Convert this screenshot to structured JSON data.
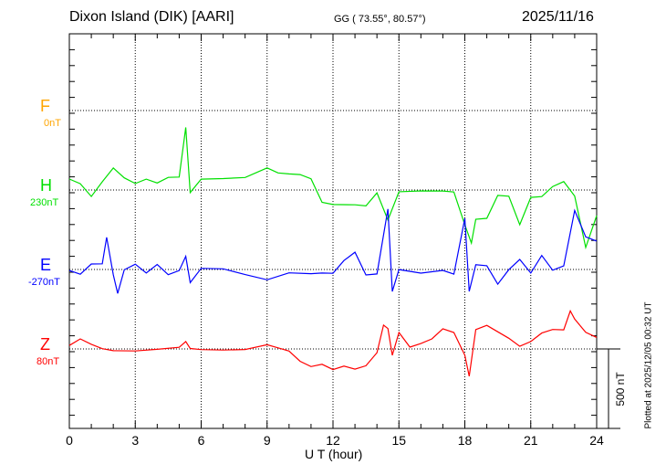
{
  "header": {
    "station": "Dixon Island (DIK)  [AARI]",
    "coords": "GG ( 73.55°,  80.57°)",
    "date": "2025/11/16"
  },
  "footer": {
    "plotted": "Plotted at 2025/12/05 00:32 UT",
    "scale": "500 nT"
  },
  "colors": {
    "F": "#ffa500",
    "H": "#00e000",
    "E": "#0000ff",
    "Z": "#ff0000"
  },
  "chart_data": {
    "type": "line",
    "title": "Dixon Island (DIK)  [AARI]",
    "xlabel": "U T (hour)",
    "xlim": [
      0,
      24
    ],
    "xticks": [
      "0",
      "3",
      "6",
      "9",
      "12",
      "15",
      "18",
      "21",
      "24"
    ],
    "scale_bar_nT": 500,
    "grid": true,
    "series": [
      {
        "name": "F",
        "label": "F",
        "baseline_label": "0nT",
        "baseline": 0,
        "x": [],
        "values": []
      },
      {
        "name": "H",
        "label": "H",
        "baseline_label": "230nT",
        "baseline": 230,
        "x": [
          0,
          0.5,
          1,
          1.5,
          2,
          2.5,
          3,
          3.5,
          4,
          4.5,
          5,
          5.3,
          5.5,
          6,
          7,
          8,
          9,
          9.5,
          10,
          10.5,
          11,
          11.5,
          12,
          13,
          13.5,
          14,
          14.5,
          15,
          16,
          17,
          17.5,
          18,
          18.3,
          18.5,
          19,
          19.5,
          20,
          20.5,
          21,
          21.5,
          22,
          22.5,
          23,
          23.5,
          24
        ],
        "values": [
          305,
          276,
          190,
          276,
          362,
          305,
          276,
          305,
          276,
          305,
          305,
          621,
          218,
          305,
          305,
          305,
          362,
          334,
          334,
          334,
          305,
          150,
          132,
          132,
          132,
          218,
          46,
          218,
          218,
          218,
          218,
          17,
          -98,
          46,
          46,
          190,
          190,
          17,
          190,
          190,
          247,
          276,
          190,
          -127,
          75
        ]
      },
      {
        "name": "E",
        "label": "E",
        "baseline_label": "-270nT",
        "baseline": -270,
        "x": [
          0,
          0.5,
          1,
          1.5,
          1.7,
          2,
          2.2,
          2.5,
          3,
          3.5,
          4,
          4.5,
          5,
          5.3,
          5.5,
          6,
          7,
          8,
          9,
          10,
          11,
          11.5,
          12,
          12.5,
          13,
          13.5,
          14,
          14.5,
          14.7,
          15,
          16,
          17,
          17.5,
          18,
          18.2,
          18.5,
          19,
          19.5,
          20,
          20.5,
          21,
          21.5,
          22,
          22.5,
          23,
          23.5,
          24
        ],
        "values": [
          -270,
          -299,
          -241,
          -241,
          -69,
          -299,
          -414,
          -270,
          -241,
          -299,
          -241,
          -299,
          -270,
          -184,
          -356,
          -270,
          -270,
          -299,
          -328,
          -287,
          -299,
          -299,
          -299,
          -212,
          -155,
          -299,
          -299,
          104,
          -414,
          -270,
          -287,
          -270,
          -299,
          46,
          -414,
          -241,
          -241,
          -356,
          -270,
          -212,
          -299,
          -184,
          -270,
          -241,
          104,
          -69,
          -98
        ]
      },
      {
        "name": "Z",
        "label": "Z",
        "baseline_label": "80nT",
        "baseline": 80,
        "x": [
          0,
          0.5,
          1,
          1.5,
          2,
          3,
          4,
          5,
          5.3,
          5.5,
          6,
          7,
          8,
          9,
          9.5,
          10,
          10.5,
          11,
          11.5,
          12,
          12.5,
          13,
          13.5,
          14,
          14.3,
          14.5,
          14.7,
          15,
          15.5,
          16,
          16.5,
          17,
          17.5,
          18,
          18.2,
          18.5,
          19,
          20,
          20.5,
          21,
          21.5,
          22,
          22.5,
          22.8,
          23,
          23.5,
          24
        ],
        "values": [
          103,
          138,
          103,
          80,
          74,
          74,
          80,
          86,
          120,
          80,
          80,
          80,
          80,
          103,
          80,
          63,
          5,
          -24,
          -12,
          -52,
          -35,
          -52,
          -24,
          63,
          235,
          207,
          34,
          178,
          92,
          120,
          149,
          207,
          178,
          34,
          -93,
          207,
          235,
          149,
          92,
          120,
          178,
          207,
          207,
          322,
          264,
          178,
          149
        ]
      }
    ]
  }
}
